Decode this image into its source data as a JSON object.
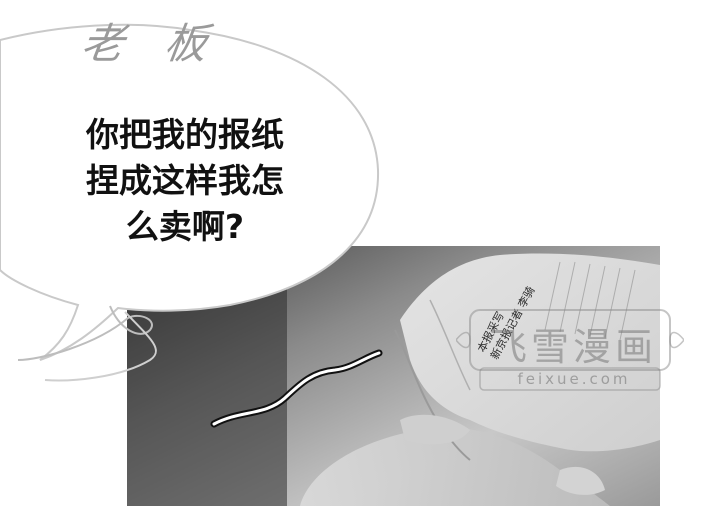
{
  "speaker_label": "老 板",
  "dialogue": {
    "line1": "你把我的报纸",
    "line2": "捏成这样我怎",
    "line3": "么卖啊?"
  },
  "newspaper_byline": {
    "line1": "本报采写",
    "line2": "新京报记者 李骑"
  },
  "watermark": {
    "title": "飞雪漫画",
    "url": "feixue.com"
  },
  "icons": [
    "wiggle-line-icon"
  ],
  "colors": {
    "bubble_fill": "#ffffff",
    "bubble_stroke": "#c9c9c9",
    "speaker_text": "#9a9a9a",
    "dialogue_text": "#111111",
    "panel_bg": "#777777"
  }
}
